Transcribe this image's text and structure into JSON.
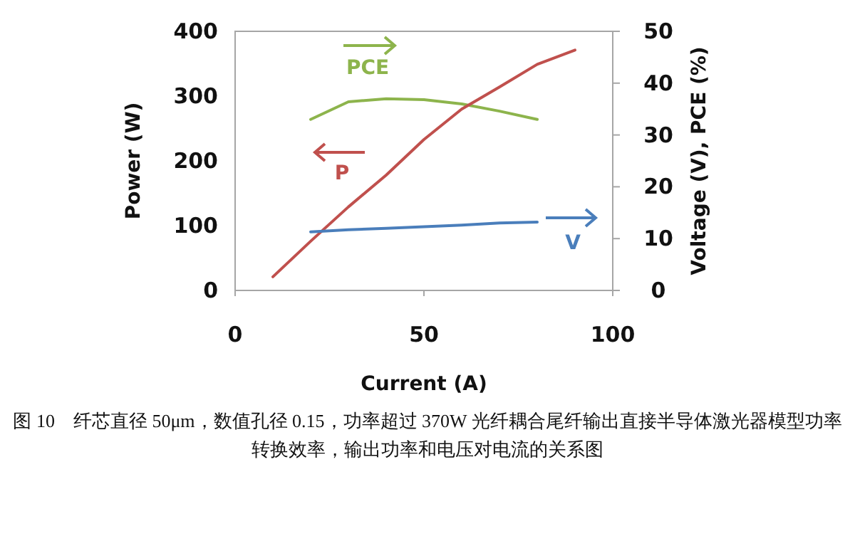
{
  "chart_data": {
    "type": "line",
    "xlabel": "Current (A)",
    "ylabel": "Power (W)",
    "y2label": "Voltage (V), PCE (%)",
    "xlim": [
      0,
      100
    ],
    "xticks": [
      0,
      50,
      100
    ],
    "ylim": [
      0,
      400
    ],
    "yticks": [
      0,
      100,
      200,
      300,
      400
    ],
    "y2lim": [
      0,
      50
    ],
    "y2ticks": [
      0,
      10,
      20,
      30,
      40,
      50
    ],
    "grid": false,
    "legend": "top",
    "marker": "none",
    "line_style": "solid",
    "series": [
      {
        "name": "PCE",
        "color": "#8db44c",
        "axis": "y2",
        "x": [
          20,
          30,
          40,
          50,
          60,
          70,
          80
        ],
        "values": [
          33.0,
          36.4,
          37.0,
          36.8,
          36.0,
          34.6,
          33.0
        ]
      },
      {
        "name": "P",
        "color": "#c0504d",
        "x": [
          10,
          20,
          30,
          40,
          50,
          60,
          70,
          80,
          90
        ],
        "values": [
          21,
          76,
          129,
          178,
          233,
          280,
          314,
          349,
          371
        ]
      },
      {
        "name": "V",
        "color": "#4a7ebb",
        "axis": "y2",
        "x": [
          20,
          30,
          40,
          50,
          60,
          70,
          80
        ],
        "values": [
          11.3,
          11.7,
          12.0,
          12.3,
          12.6,
          13.0,
          13.2
        ]
      }
    ],
    "annotations": [
      "图 10　纤芯直径 50μm，数值孔径 0.15，功率超过 370W 光纤耦合尾纤输出直接半导体激光器模型功率转换效率，输出功率和电压对电流的关系图"
    ]
  }
}
